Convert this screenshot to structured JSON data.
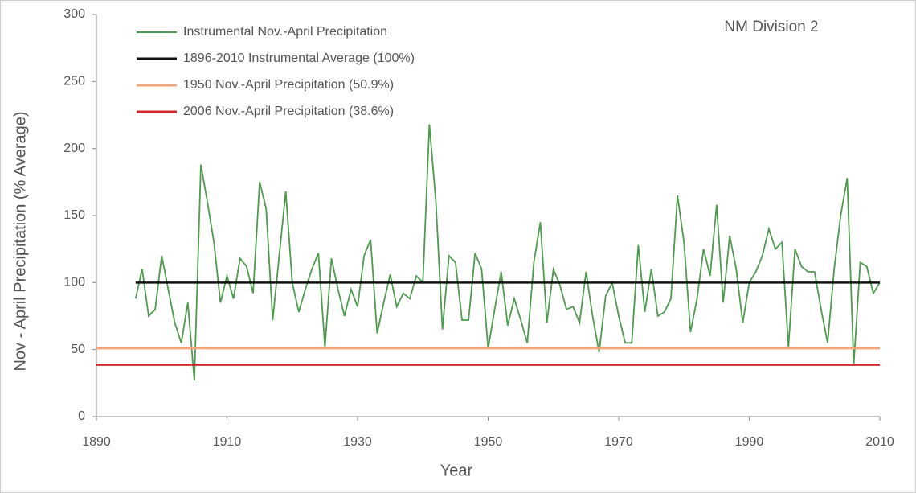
{
  "chart_data": {
    "type": "line",
    "annotation": "NM Division 2",
    "xlabel": "Year",
    "ylabel": "Nov - April Precipitation (% Average)",
    "xlim": [
      1890,
      2010
    ],
    "xticks": [
      1890,
      1910,
      1930,
      1950,
      1970,
      1990,
      2010
    ],
    "ylim": [
      0,
      300
    ],
    "yticks": [
      0,
      50,
      100,
      150,
      200,
      250,
      300
    ],
    "grid": false,
    "legend": "upper left",
    "series": [
      {
        "name": "Instrumental Nov.-April Precipitation",
        "color": "#4e9a4e",
        "x": [
          1896,
          1897,
          1898,
          1899,
          1900,
          1901,
          1902,
          1903,
          1904,
          1905,
          1906,
          1907,
          1908,
          1909,
          1910,
          1911,
          1912,
          1913,
          1914,
          1915,
          1916,
          1917,
          1918,
          1919,
          1920,
          1921,
          1922,
          1923,
          1924,
          1925,
          1926,
          1927,
          1928,
          1929,
          1930,
          1931,
          1932,
          1933,
          1934,
          1935,
          1936,
          1937,
          1938,
          1939,
          1940,
          1941,
          1942,
          1943,
          1944,
          1945,
          1946,
          1947,
          1948,
          1949,
          1950,
          1951,
          1952,
          1953,
          1954,
          1955,
          1956,
          1957,
          1958,
          1959,
          1960,
          1961,
          1962,
          1963,
          1964,
          1965,
          1966,
          1967,
          1968,
          1969,
          1970,
          1971,
          1972,
          1973,
          1974,
          1975,
          1976,
          1977,
          1978,
          1979,
          1980,
          1981,
          1982,
          1983,
          1984,
          1985,
          1986,
          1987,
          1988,
          1989,
          1990,
          1991,
          1992,
          1993,
          1994,
          1995,
          1996,
          1997,
          1998,
          1999,
          2000,
          2001,
          2002,
          2003,
          2004,
          2005,
          2006,
          2007,
          2008,
          2009,
          2010
        ],
        "values": [
          88,
          110,
          75,
          80,
          120,
          95,
          70,
          55,
          85,
          27,
          188,
          160,
          130,
          85,
          105,
          88,
          118,
          112,
          92,
          175,
          155,
          72,
          120,
          168,
          100,
          78,
          95,
          110,
          122,
          52,
          118,
          95,
          75,
          95,
          82,
          120,
          132,
          62,
          85,
          106,
          82,
          92,
          88,
          105,
          100,
          218,
          160,
          65,
          120,
          115,
          72,
          72,
          122,
          110,
          50.9,
          80,
          108,
          68,
          88,
          72,
          55,
          115,
          145,
          70,
          110,
          98,
          80,
          82,
          70,
          108,
          75,
          48,
          90,
          100,
          75,
          55,
          55,
          128,
          78,
          110,
          75,
          78,
          88,
          165,
          130,
          63,
          88,
          125,
          105,
          158,
          85,
          135,
          110,
          70,
          100,
          108,
          120,
          140,
          125,
          130,
          52,
          125,
          112,
          108,
          108,
          80,
          55,
          110,
          150,
          178,
          38.6,
          115,
          112,
          92,
          100
        ]
      },
      {
        "name": "1896-2010 Instrumental Average (100%)",
        "color": "#111111",
        "x": [
          1896,
          2010
        ],
        "values": [
          100,
          100
        ]
      },
      {
        "name": "1950 Nov.-April Precipitation (50.9%)",
        "color": "#f4a578",
        "x": [
          1890,
          2010
        ],
        "values": [
          50.9,
          50.9
        ]
      },
      {
        "name": "2006 Nov.-April Precipitation (38.6%)",
        "color": "#d02a2a",
        "x": [
          1890,
          2010
        ],
        "values": [
          38.6,
          38.6
        ]
      }
    ]
  }
}
